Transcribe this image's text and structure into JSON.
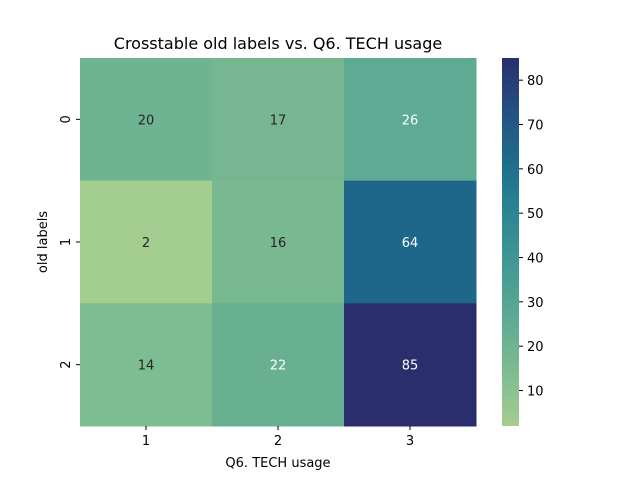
{
  "chart_data": {
    "type": "heatmap",
    "title": "Crosstable old labels vs. Q6. TECH usage",
    "xlabel": "Q6. TECH usage",
    "ylabel": "old labels",
    "x_categories": [
      "1",
      "2",
      "3"
    ],
    "y_categories": [
      "0",
      "1",
      "2"
    ],
    "values": [
      [
        20,
        17,
        26
      ],
      [
        2,
        16,
        64
      ],
      [
        14,
        22,
        85
      ]
    ],
    "colorbar": {
      "min": 2,
      "max": 85,
      "ticks": [
        10,
        20,
        30,
        40,
        50,
        60,
        70,
        80
      ]
    },
    "colormap": "crest",
    "grid": false
  }
}
